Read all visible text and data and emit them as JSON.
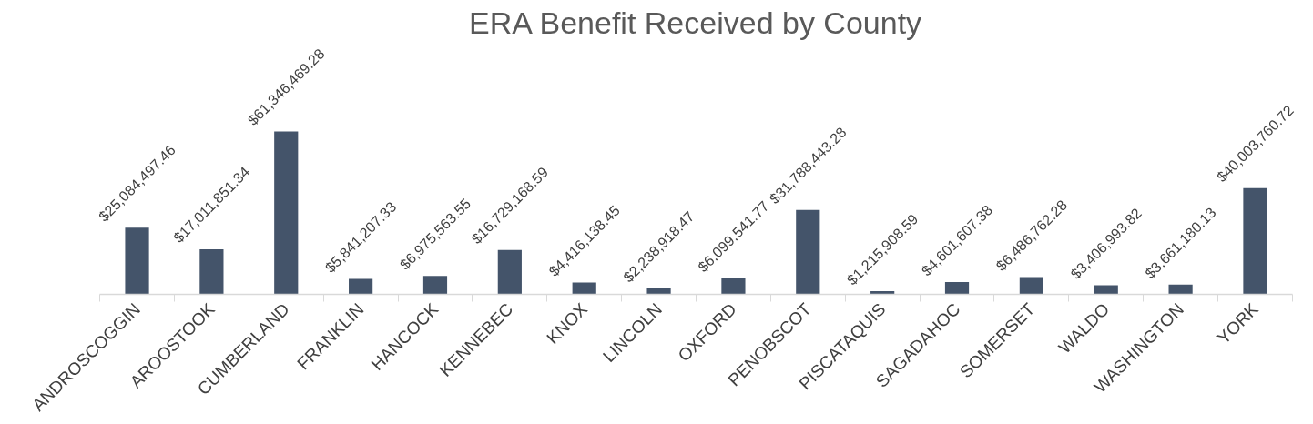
{
  "chart_data": {
    "type": "bar",
    "title": "ERA Benefit Received by County",
    "categories": [
      "ANDROSCOGGIN",
      "AROOSTOOK",
      "CUMBERLAND",
      "FRANKLIN",
      "HANCOCK",
      "KENNEBEC",
      "KNOX",
      "LINCOLN",
      "OXFORD",
      "PENOBSCOT",
      "PISCATAQUIS",
      "SAGADAHOC",
      "SOMERSET",
      "WALDO",
      "WASHINGTON",
      "YORK"
    ],
    "values": [
      25084497.46,
      17011851.34,
      61346469.28,
      5841207.33,
      6975563.55,
      16729168.59,
      4416138.45,
      2238918.47,
      6099541.77,
      31788443.28,
      1215908.59,
      4601607.38,
      6486762.28,
      3406993.82,
      3661180.13,
      40003760.72
    ],
    "value_labels": [
      "$25,084,497.46",
      "$17,011,851.34",
      "$61,346,469.28",
      "$5,841,207.33",
      "$6,975,563.55",
      "$16,729,168.59",
      "$4,416,138.45",
      "$2,238,918.47",
      "$6,099,541.77",
      "$31,788,443.28",
      "$1,215,908.59",
      "$4,601,607.38",
      "$6,486,762.28",
      "$3,406,993.82",
      "$3,661,180.13",
      "$40,003,760.72"
    ],
    "color": "#44546a"
  }
}
